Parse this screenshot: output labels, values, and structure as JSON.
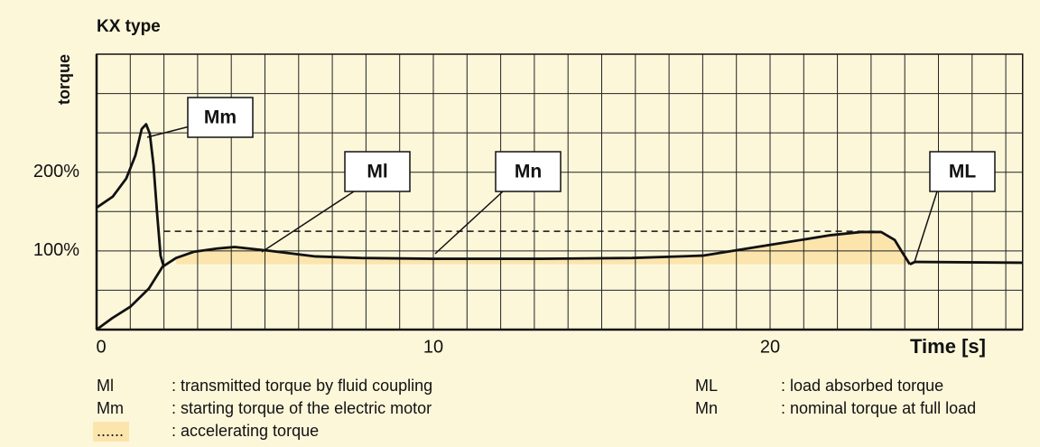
{
  "chart_data": {
    "type": "line",
    "title": "KX type",
    "y_label": "torque",
    "x_label": "Time [s]",
    "xlim": [
      0,
      27.5
    ],
    "ylim": [
      0,
      350
    ],
    "xticks": [
      0,
      10,
      20
    ],
    "yticks": [
      {
        "value": 100,
        "label": "100%"
      },
      {
        "value": 200,
        "label": "200%"
      }
    ],
    "xgrid": [
      0,
      1,
      2,
      3,
      4,
      5,
      6,
      7,
      8,
      9,
      10,
      11,
      12,
      13,
      14,
      15,
      16,
      17,
      18,
      19,
      20,
      21,
      22,
      23,
      24,
      25,
      26,
      27
    ],
    "ygrid": [
      0,
      50,
      100,
      150,
      200,
      250,
      300,
      350
    ],
    "grid": true,
    "background": "#fdf7da",
    "series": [
      {
        "color": "#111111",
        "x": [
          0,
          0.48,
          0.88,
          1.15,
          1.34,
          1.47,
          1.58,
          1.69,
          1.8,
          1.9,
          1.98
        ],
        "values": [
          155,
          169,
          192,
          221,
          255,
          261,
          249,
          209,
          146,
          94,
          82
        ]
      },
      {
        "color": "#111111",
        "x": [
          0,
          0.48,
          1.0,
          1.55,
          1.96,
          2.36,
          2.9,
          3.57,
          4.1,
          5.17,
          6.5,
          7.85,
          10,
          13.2,
          15.9,
          18,
          19.9,
          21.8,
          22.7,
          23.3,
          23.7,
          23.9,
          24.15
        ],
        "values": [
          0,
          15,
          29,
          52,
          80,
          91,
          99,
          103,
          105,
          100,
          93,
          91,
          90,
          90,
          91,
          94,
          107,
          120,
          124,
          124,
          114,
          100,
          83
        ]
      },
      {
        "color": "#111111",
        "x": [
          24.15,
          24.3,
          27.5
        ],
        "values": [
          83,
          86,
          85
        ]
      },
      {
        "color": "#111111",
        "dashed": true,
        "x": [
          2,
          23.2
        ],
        "values": [
          125,
          125
        ]
      }
    ],
    "fill": {
      "series": 1,
      "from": 2,
      "base": 83,
      "color": "#fbe5ad"
    },
    "annotations": [
      "Mm",
      "Ml",
      "Mn",
      "ML"
    ],
    "legend": [
      {
        "key": "Ml",
        "text": ": transmitted torque by fluid coupling"
      },
      {
        "key": "Mm",
        "text": ": starting torque of the electric motor"
      },
      {
        "key": "......",
        "text": ": accelerating torque"
      },
      {
        "key": "ML",
        "text": ": load absorbed torque"
      },
      {
        "key": "Mn",
        "text": ": nominal torque at full load"
      }
    ]
  }
}
